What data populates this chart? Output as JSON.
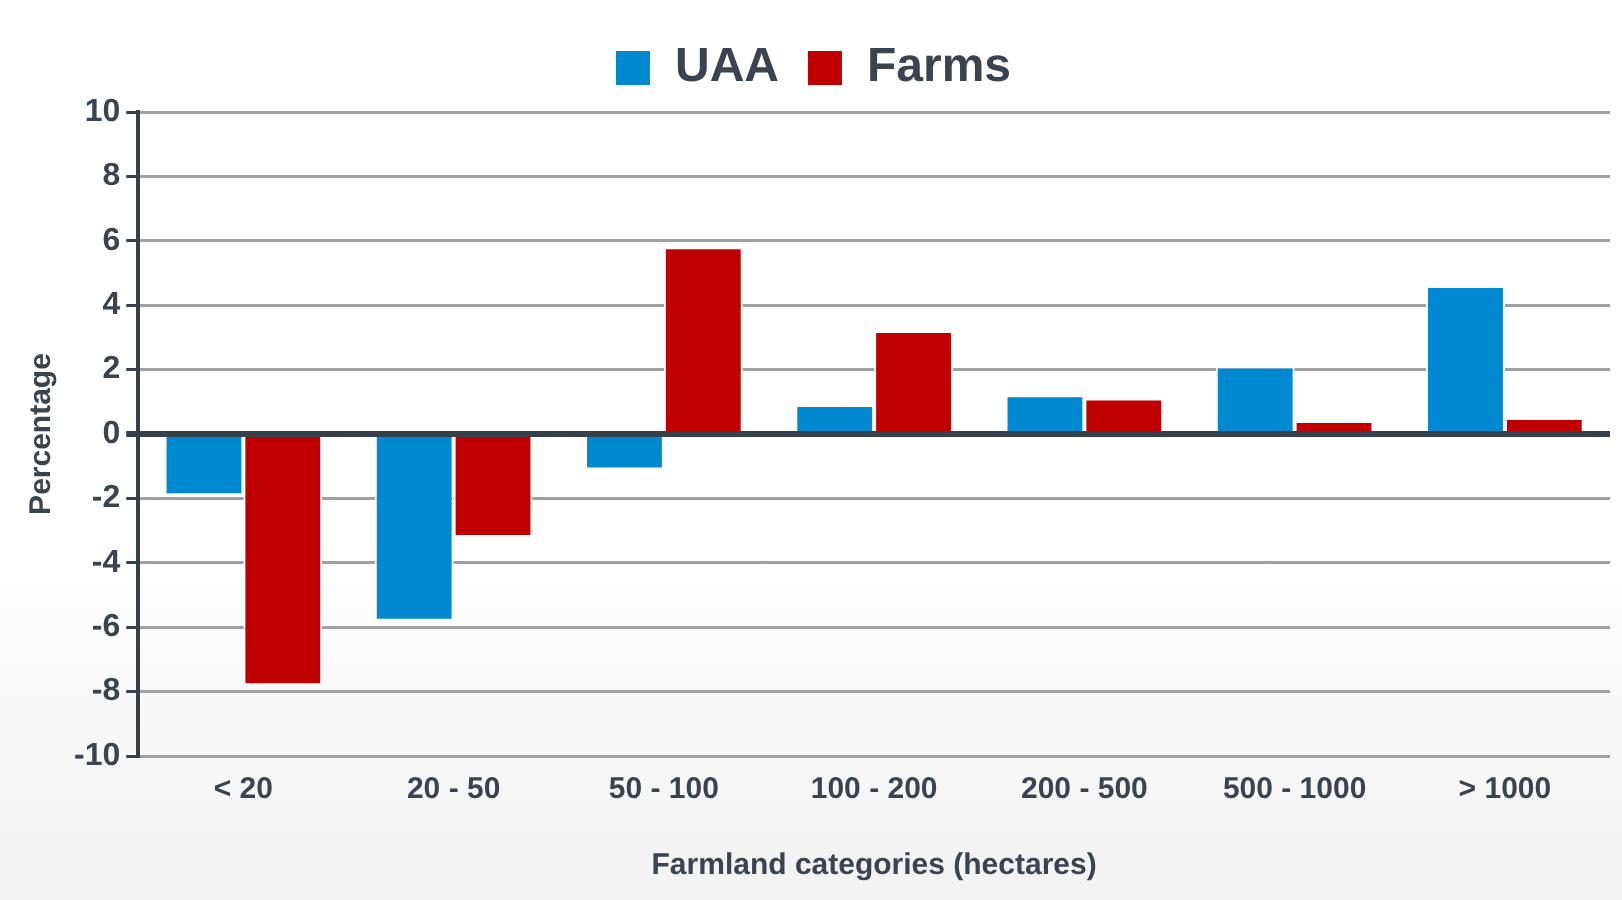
{
  "chart_data": {
    "type": "bar",
    "xlabel": "Farmland categories (hectares)",
    "ylabel": "Percentage",
    "categories": [
      "< 20",
      "20 - 50",
      "50 - 100",
      "100 - 200",
      "200 - 500",
      "500 - 1000",
      "> 1000"
    ],
    "series": [
      {
        "name": "UAA",
        "color": "#0088d1",
        "values": [
          -1.9,
          -5.8,
          -1.1,
          0.9,
          1.2,
          2.1,
          4.6
        ]
      },
      {
        "name": "Farms",
        "color": "#c00000",
        "values": [
          -7.8,
          -3.2,
          5.8,
          3.2,
          1.1,
          0.4,
          0.5
        ]
      }
    ],
    "ylim": [
      -10,
      10
    ],
    "yticks": [
      -10,
      -8,
      -6,
      -4,
      -2,
      0,
      2,
      4,
      6,
      8,
      10
    ],
    "grid": "y",
    "legend": "top"
  }
}
